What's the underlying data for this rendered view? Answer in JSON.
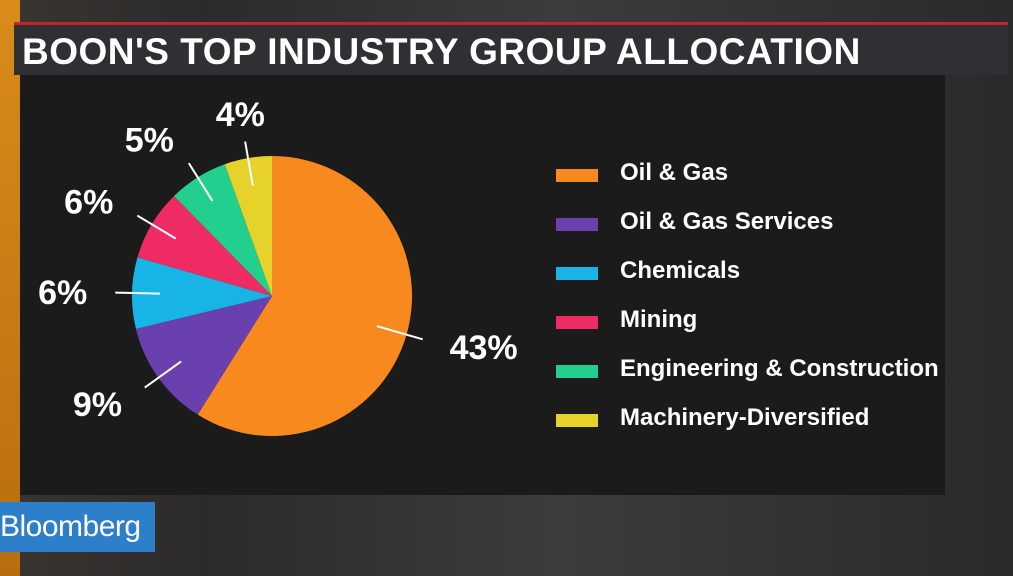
{
  "title": "BOON'S TOP INDUSTRY GROUP ALLOCATION",
  "brand": "Bloomberg",
  "colors": {
    "top_rule": "#c0262d",
    "brand_bg": "#2d7fc9"
  },
  "chart_data": {
    "type": "pie",
    "title": "BOON'S TOP INDUSTRY GROUP ALLOCATION",
    "start_angle_deg": 0,
    "legend_position": "right",
    "slices": [
      {
        "label": "Oil & Gas",
        "value": 43,
        "display": "43%",
        "color": "#f7891e"
      },
      {
        "label": "Oil & Gas Services",
        "value": 9,
        "display": "9%",
        "color": "#6a3fae"
      },
      {
        "label": "Chemicals",
        "value": 6,
        "display": "6%",
        "color": "#18b4e6"
      },
      {
        "label": "Mining",
        "value": 6,
        "display": "6%",
        "color": "#ef2b63"
      },
      {
        "label": "Engineering & Construction",
        "value": 5,
        "display": "5%",
        "color": "#23cf8f"
      },
      {
        "label": "Machinery-Diversified",
        "value": 4,
        "display": "4%",
        "color": "#e6d22a"
      }
    ]
  }
}
